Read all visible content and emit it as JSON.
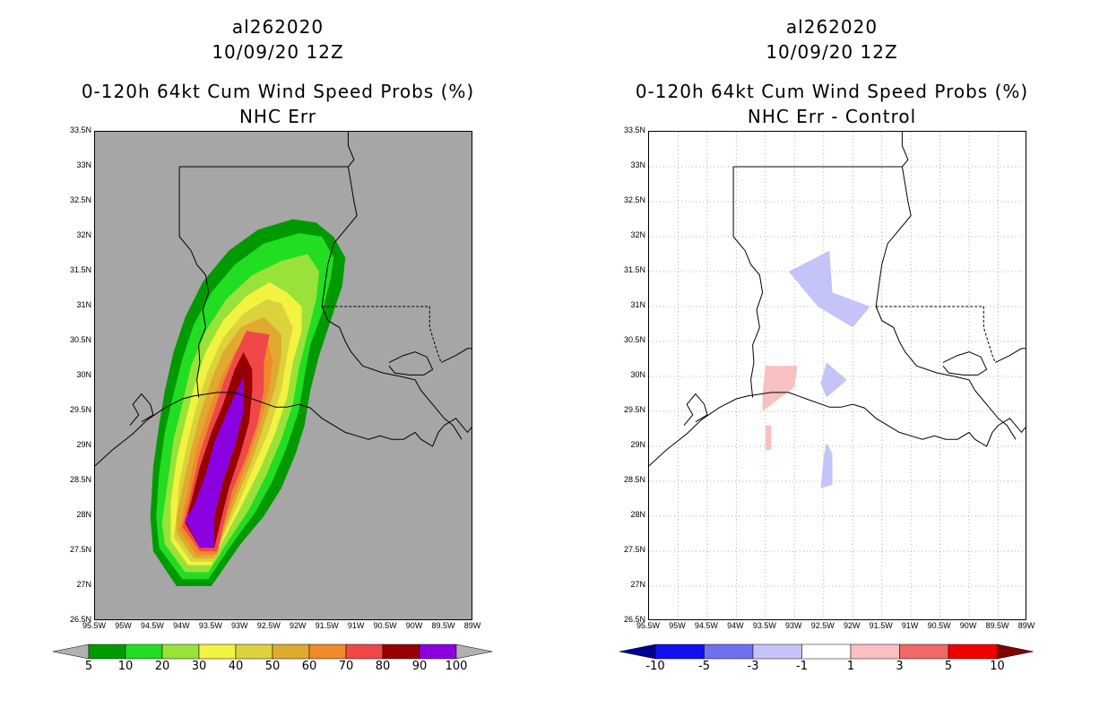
{
  "panels": [
    {
      "id": "left",
      "storm_id": "al262020",
      "datetime": "10/09/20 12Z",
      "product": "0-120h 64kt Cum Wind Speed Probs (%)",
      "subtitle": "NHC Err",
      "background_color": "#a6a6a6",
      "grid": false,
      "colorbar_labels": [
        "5",
        "10",
        "20",
        "30",
        "40",
        "50",
        "60",
        "70",
        "80",
        "90",
        "100"
      ],
      "colorbar_colors": [
        "#b0b0b0",
        "#009a00",
        "#22dd22",
        "#99e23a",
        "#f2f240",
        "#dcd23c",
        "#e0aa30",
        "#ee8a2c",
        "#f04848",
        "#960000",
        "#8a00e0",
        "#b0b0b0"
      ]
    },
    {
      "id": "right",
      "storm_id": "al262020",
      "datetime": "10/09/20 12Z",
      "product": "0-120h 64kt Cum Wind Speed Probs (%)",
      "subtitle": "NHC Err - Control",
      "background_color": "#ffffff",
      "grid": true,
      "colorbar_labels": [
        "-10",
        "-5",
        "-3",
        "-1",
        "1",
        "3",
        "5",
        "10"
      ],
      "colorbar_colors": [
        "#000090",
        "#1010f0",
        "#7070f0",
        "#c4c4f8",
        "#ffffff",
        "#f8c0c0",
        "#f06868",
        "#f00000",
        "#800000"
      ]
    }
  ],
  "axes": {
    "lon_labels": [
      "95.5W",
      "95W",
      "94.5W",
      "94W",
      "93.5W",
      "93W",
      "92.5W",
      "92W",
      "91.5W",
      "91W",
      "90.5W",
      "90W",
      "89.5W",
      "89W"
    ],
    "lat_labels": [
      "33.5N",
      "33N",
      "32.5N",
      "32N",
      "31.5N",
      "31N",
      "30.5N",
      "30N",
      "29.5N",
      "29N",
      "28.5N",
      "28N",
      "27.5N",
      "27N",
      "26.5N"
    ],
    "lon_range": [
      -95.5,
      -89.0
    ],
    "lat_range": [
      26.5,
      33.5
    ]
  },
  "contours": {
    "levels": [
      5,
      10,
      20,
      30,
      40,
      50,
      60,
      70,
      80,
      90
    ],
    "colors": [
      "#009a00",
      "#22dd22",
      "#99e23a",
      "#f2f240",
      "#dcd23c",
      "#e0aa30",
      "#ee8a2c",
      "#f04848",
      "#960000",
      "#8a00e0"
    ]
  },
  "difference_areas": [
    {
      "sign": "negative",
      "color": "#c4c4f8",
      "points": [
        [
          -93.1,
          31.5
        ],
        [
          -92.4,
          31.8
        ],
        [
          -92.35,
          31.2
        ],
        [
          -91.7,
          31.0
        ],
        [
          -92.0,
          30.7
        ],
        [
          -92.6,
          31.0
        ]
      ]
    },
    {
      "sign": "negative",
      "color": "#c4c4f8",
      "points": [
        [
          -92.45,
          30.2
        ],
        [
          -92.1,
          29.95
        ],
        [
          -92.45,
          29.7
        ],
        [
          -92.55,
          29.9
        ]
      ]
    },
    {
      "sign": "negative",
      "color": "#c4c4f8",
      "points": [
        [
          -92.45,
          29.05
        ],
        [
          -92.35,
          28.9
        ],
        [
          -92.35,
          28.45
        ],
        [
          -92.55,
          28.4
        ],
        [
          -92.5,
          28.85
        ]
      ]
    },
    {
      "sign": "positive",
      "color": "#f8c0c0",
      "points": [
        [
          -93.5,
          30.15
        ],
        [
          -92.95,
          30.15
        ],
        [
          -93.0,
          29.85
        ],
        [
          -93.55,
          29.5
        ],
        [
          -93.55,
          29.75
        ]
      ]
    },
    {
      "sign": "positive",
      "color": "#f8c0c0",
      "points": [
        [
          -93.5,
          29.3
        ],
        [
          -93.4,
          29.3
        ],
        [
          -93.4,
          28.95
        ],
        [
          -93.5,
          28.95
        ]
      ]
    }
  ]
}
